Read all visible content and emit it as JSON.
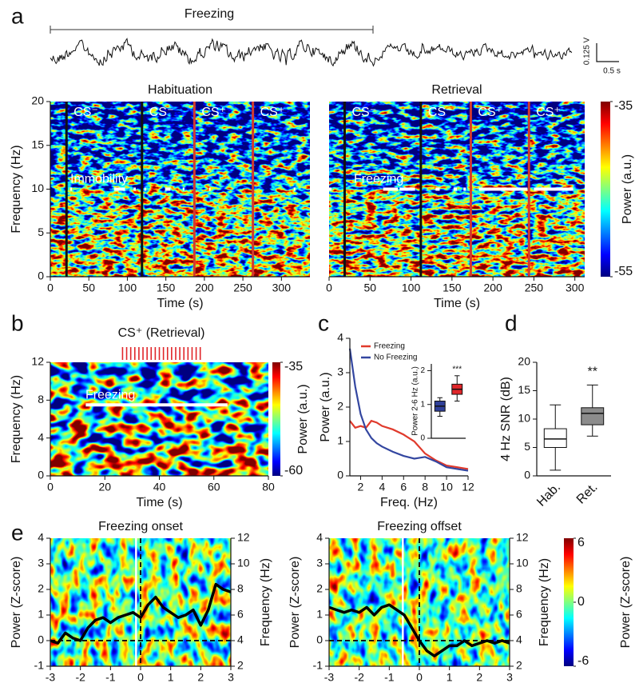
{
  "chart_data": [
    {
      "type": "trace",
      "panel": "a",
      "annotation": "Freezing",
      "scale_y": "0.125 V",
      "scale_x": "0.5 s"
    },
    {
      "type": "heatmap",
      "title": "Habituation",
      "xlabel": "Time (s)",
      "ylabel": "Frequency (Hz)",
      "xlim": [
        0,
        337
      ],
      "ylim": [
        0,
        20
      ],
      "xticks": [
        0,
        50,
        100,
        150,
        200,
        250,
        300
      ],
      "yticks": [
        0,
        5,
        10,
        15,
        20
      ],
      "markers": [
        {
          "x": 21,
          "label": "CS⁻",
          "color": "#111111"
        },
        {
          "x": 119,
          "label": "CS⁻",
          "color": "#111111"
        },
        {
          "x": 187,
          "label": "CS⁺",
          "color": "#d23a30"
        },
        {
          "x": 263,
          "label": "CS⁺",
          "color": "#d23a30"
        }
      ],
      "annotation": "Immobility",
      "bout_freq": 10,
      "bouts": [
        [
          26,
          28
        ],
        [
          83,
          97
        ],
        [
          108,
          111
        ],
        [
          122,
          124
        ],
        [
          149,
          156
        ],
        [
          172,
          174
        ],
        [
          206,
          208
        ],
        [
          316,
          318
        ]
      ]
    },
    {
      "type": "heatmap",
      "title": "Retrieval",
      "xlabel": "Time (s)",
      "xlim": [
        0,
        312
      ],
      "ylim": [
        0,
        20
      ],
      "xticks": [
        0,
        50,
        100,
        150,
        200,
        250,
        300
      ],
      "markers": [
        {
          "x": 19,
          "label": "CS⁻",
          "color": "#111111"
        },
        {
          "x": 112,
          "label": "CS⁻",
          "color": "#111111"
        },
        {
          "x": 173,
          "label": "CS⁺",
          "color": "#d23a30"
        },
        {
          "x": 244,
          "label": "CS⁺",
          "color": "#d23a30"
        }
      ],
      "annotation": "Freezing",
      "bout_freq": 10,
      "bouts": [
        [
          0,
          3
        ],
        [
          66,
          84
        ],
        [
          86,
          105
        ],
        [
          130,
          135
        ],
        [
          152,
          156
        ],
        [
          164,
          167
        ],
        [
          183,
          242
        ],
        [
          250,
          298
        ]
      ],
      "colorbar": {
        "label": "Power (a.u.)",
        "lim": [
          -55,
          -35
        ],
        "ticks": [
          -55,
          -35
        ]
      }
    },
    {
      "type": "heatmap",
      "panel": "b",
      "xlabel": "Time (s)",
      "ylabel": "Frequency (Hz)",
      "xlim": [
        0,
        80
      ],
      "ylim": [
        0,
        12
      ],
      "xticks": [
        0,
        20,
        40,
        60,
        80
      ],
      "yticks": [
        0,
        4,
        8,
        12
      ],
      "stimulus": "CS⁺ (Retrieval)",
      "pulses": [
        26.5,
        28,
        29.5,
        31,
        32.5,
        34,
        35.5,
        37,
        38.5,
        40,
        41.5,
        43,
        44.5,
        46,
        47.5,
        49,
        50.5,
        52,
        53.5,
        55
      ],
      "annotation": "Freezing",
      "bout_freq": 7.5,
      "bouts": [
        [
          13,
          65
        ]
      ],
      "colorbar": {
        "label": "Power (a.u.)",
        "lim": [
          -60,
          -35
        ],
        "ticks": [
          -60,
          -35
        ]
      }
    },
    {
      "type": "line",
      "panel": "c",
      "xlabel": "Freq. (Hz)",
      "ylabel": "Power (a.u.)",
      "x": [
        1,
        1.5,
        2,
        2.5,
        3,
        3.5,
        4,
        5,
        6,
        7,
        8,
        9,
        10,
        11,
        12
      ],
      "series": [
        {
          "name": "Freezing",
          "color": "#e03a2c",
          "values": [
            1.6,
            1.4,
            1.45,
            1.4,
            1.6,
            1.55,
            1.45,
            1.35,
            1.2,
            1.0,
            0.65,
            0.45,
            0.3,
            0.25,
            0.2
          ]
        },
        {
          "name": "No Freezing",
          "color": "#3346a0",
          "values": [
            3.7,
            2.6,
            1.8,
            1.35,
            1.1,
            0.95,
            0.85,
            0.7,
            0.58,
            0.5,
            0.55,
            0.42,
            0.25,
            0.2,
            0.15
          ]
        }
      ],
      "xlim": [
        1,
        12
      ],
      "ylim": [
        0,
        4
      ],
      "xticks": [
        2,
        4,
        6,
        8,
        10,
        12
      ],
      "yticks": [
        0,
        1,
        2,
        3,
        4
      ],
      "legend": "upper center"
    },
    {
      "type": "box",
      "ylabel": "Power 2-6 Hz (a.u.)",
      "categories": [
        null,
        null
      ],
      "ylim": [
        0,
        2.2
      ],
      "yticks": [
        0,
        1,
        2
      ],
      "boxes": [
        {
          "color": "#2f3f99",
          "min": 0.65,
          "q1": 0.8,
          "median": 0.95,
          "q3": 1.1,
          "max": 1.2
        },
        {
          "color": "#e0262a",
          "min": 1.1,
          "q1": 1.3,
          "median": 1.45,
          "q3": 1.6,
          "max": 1.85
        }
      ],
      "annotation": "***"
    },
    {
      "type": "box",
      "panel": "d",
      "ylabel": "4 Hz SNR (dB)",
      "categories": [
        "Hab.",
        "Ret."
      ],
      "ylim": [
        0,
        20
      ],
      "yticks": [
        0,
        5,
        10,
        15,
        20
      ],
      "boxes": [
        {
          "color": "#ffffff",
          "min": 1,
          "q1": 5,
          "median": 6.5,
          "q3": 8.3,
          "max": 12.5
        },
        {
          "color": "#8c8c8c",
          "min": 7,
          "q1": 9,
          "median": 11,
          "q3": 12,
          "max": 16
        }
      ],
      "annotation": "**"
    },
    {
      "type": "dual",
      "panel": "e",
      "title": "Freezing onset",
      "xlabel": "Time (s)",
      "ylabel": "Power (Z-score)",
      "y2label": "Frequency (Hz)",
      "x": [
        -3,
        -2.75,
        -2.5,
        -2.25,
        -2,
        -1.75,
        -1.5,
        -1.25,
        -1,
        -0.75,
        -0.5,
        -0.25,
        0,
        0.25,
        0.5,
        0.75,
        1,
        1.25,
        1.5,
        1.75,
        2,
        2.25,
        2.5,
        2.75,
        3
      ],
      "series": [
        {
          "color": "#000000",
          "values": [
            0,
            -0.1,
            0.3,
            0.1,
            0,
            0.5,
            0.8,
            0.9,
            0.7,
            0.9,
            1.0,
            1.1,
            0.9,
            1.4,
            1.7,
            1.3,
            1.1,
            0.9,
            1.0,
            1.2,
            0.6,
            1.2,
            2.2,
            2.0,
            1.9
          ]
        }
      ],
      "xlim": [
        -3,
        3
      ],
      "ylim": [
        -1,
        4
      ],
      "y2lim": [
        2,
        12
      ],
      "xticks": [
        -3,
        -2,
        -1,
        0,
        1,
        2,
        3
      ],
      "yticks": [
        -1,
        0,
        1,
        2,
        3,
        4
      ],
      "y2ticks": [
        2,
        4,
        6,
        8,
        10,
        12
      ],
      "event_x": -0.15,
      "reference_x": 0,
      "reference_y": 0
    },
    {
      "type": "dual",
      "title": "Freezing offset",
      "xlabel": "Time (s)",
      "ylabel": "Power (Z-score)",
      "y2label": "Frequency (Hz)",
      "x": [
        -3,
        -2.75,
        -2.5,
        -2.25,
        -2,
        -1.75,
        -1.5,
        -1.25,
        -1,
        -0.75,
        -0.5,
        -0.25,
        0,
        0.25,
        0.5,
        0.75,
        1,
        1.25,
        1.5,
        1.75,
        2,
        2.25,
        2.5,
        2.75,
        3
      ],
      "series": [
        {
          "color": "#000000",
          "values": [
            1.3,
            1.2,
            1.1,
            1.2,
            1.1,
            1.3,
            1.0,
            1.3,
            1.4,
            1.2,
            1.0,
            0.5,
            0.0,
            -0.4,
            -0.6,
            -0.4,
            -0.2,
            -0.2,
            0.0,
            -0.2,
            -0.1,
            0.0,
            -0.1,
            0.0,
            -0.1
          ]
        }
      ],
      "xlim": [
        -3,
        3
      ],
      "ylim": [
        -1,
        4
      ],
      "y2lim": [
        2,
        12
      ],
      "xticks": [
        -3,
        -2,
        -1,
        0,
        1,
        2,
        3
      ],
      "yticks": [
        -1,
        0,
        1,
        2,
        3,
        4
      ],
      "y2ticks": [
        2,
        4,
        6,
        8,
        10,
        12
      ],
      "event_x": -0.55,
      "reference_x": 0,
      "reference_y": 0,
      "colorbar": {
        "label": "Power (Z-score)",
        "lim": [
          -6,
          6
        ],
        "ticks": [
          -6,
          0,
          6
        ]
      }
    }
  ]
}
